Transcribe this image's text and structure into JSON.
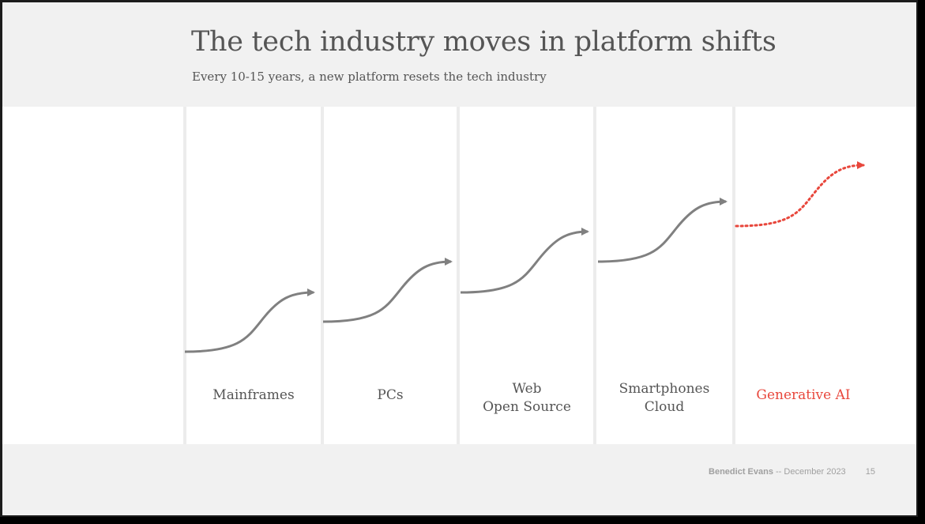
{
  "title": "The tech industry moves in platform shifts",
  "subtitle": "Every 10-15 years, a new platform resets the tech industry",
  "platforms": [
    {
      "line1": "Mainframes",
      "line2": ""
    },
    {
      "line1": "PCs",
      "line2": ""
    },
    {
      "line1": "Web",
      "line2": "Open Source"
    },
    {
      "line1": "Smartphones",
      "line2": "Cloud"
    },
    {
      "line1": "Generative AI",
      "line2": ""
    }
  ],
  "footer": {
    "author": "Benedict Evans",
    "separator": "--",
    "date": "December 2023",
    "page": "15"
  },
  "colors": {
    "curve": "#808080",
    "future": "#e8473c",
    "panel": "#f1f1f1",
    "text": "#555555"
  }
}
